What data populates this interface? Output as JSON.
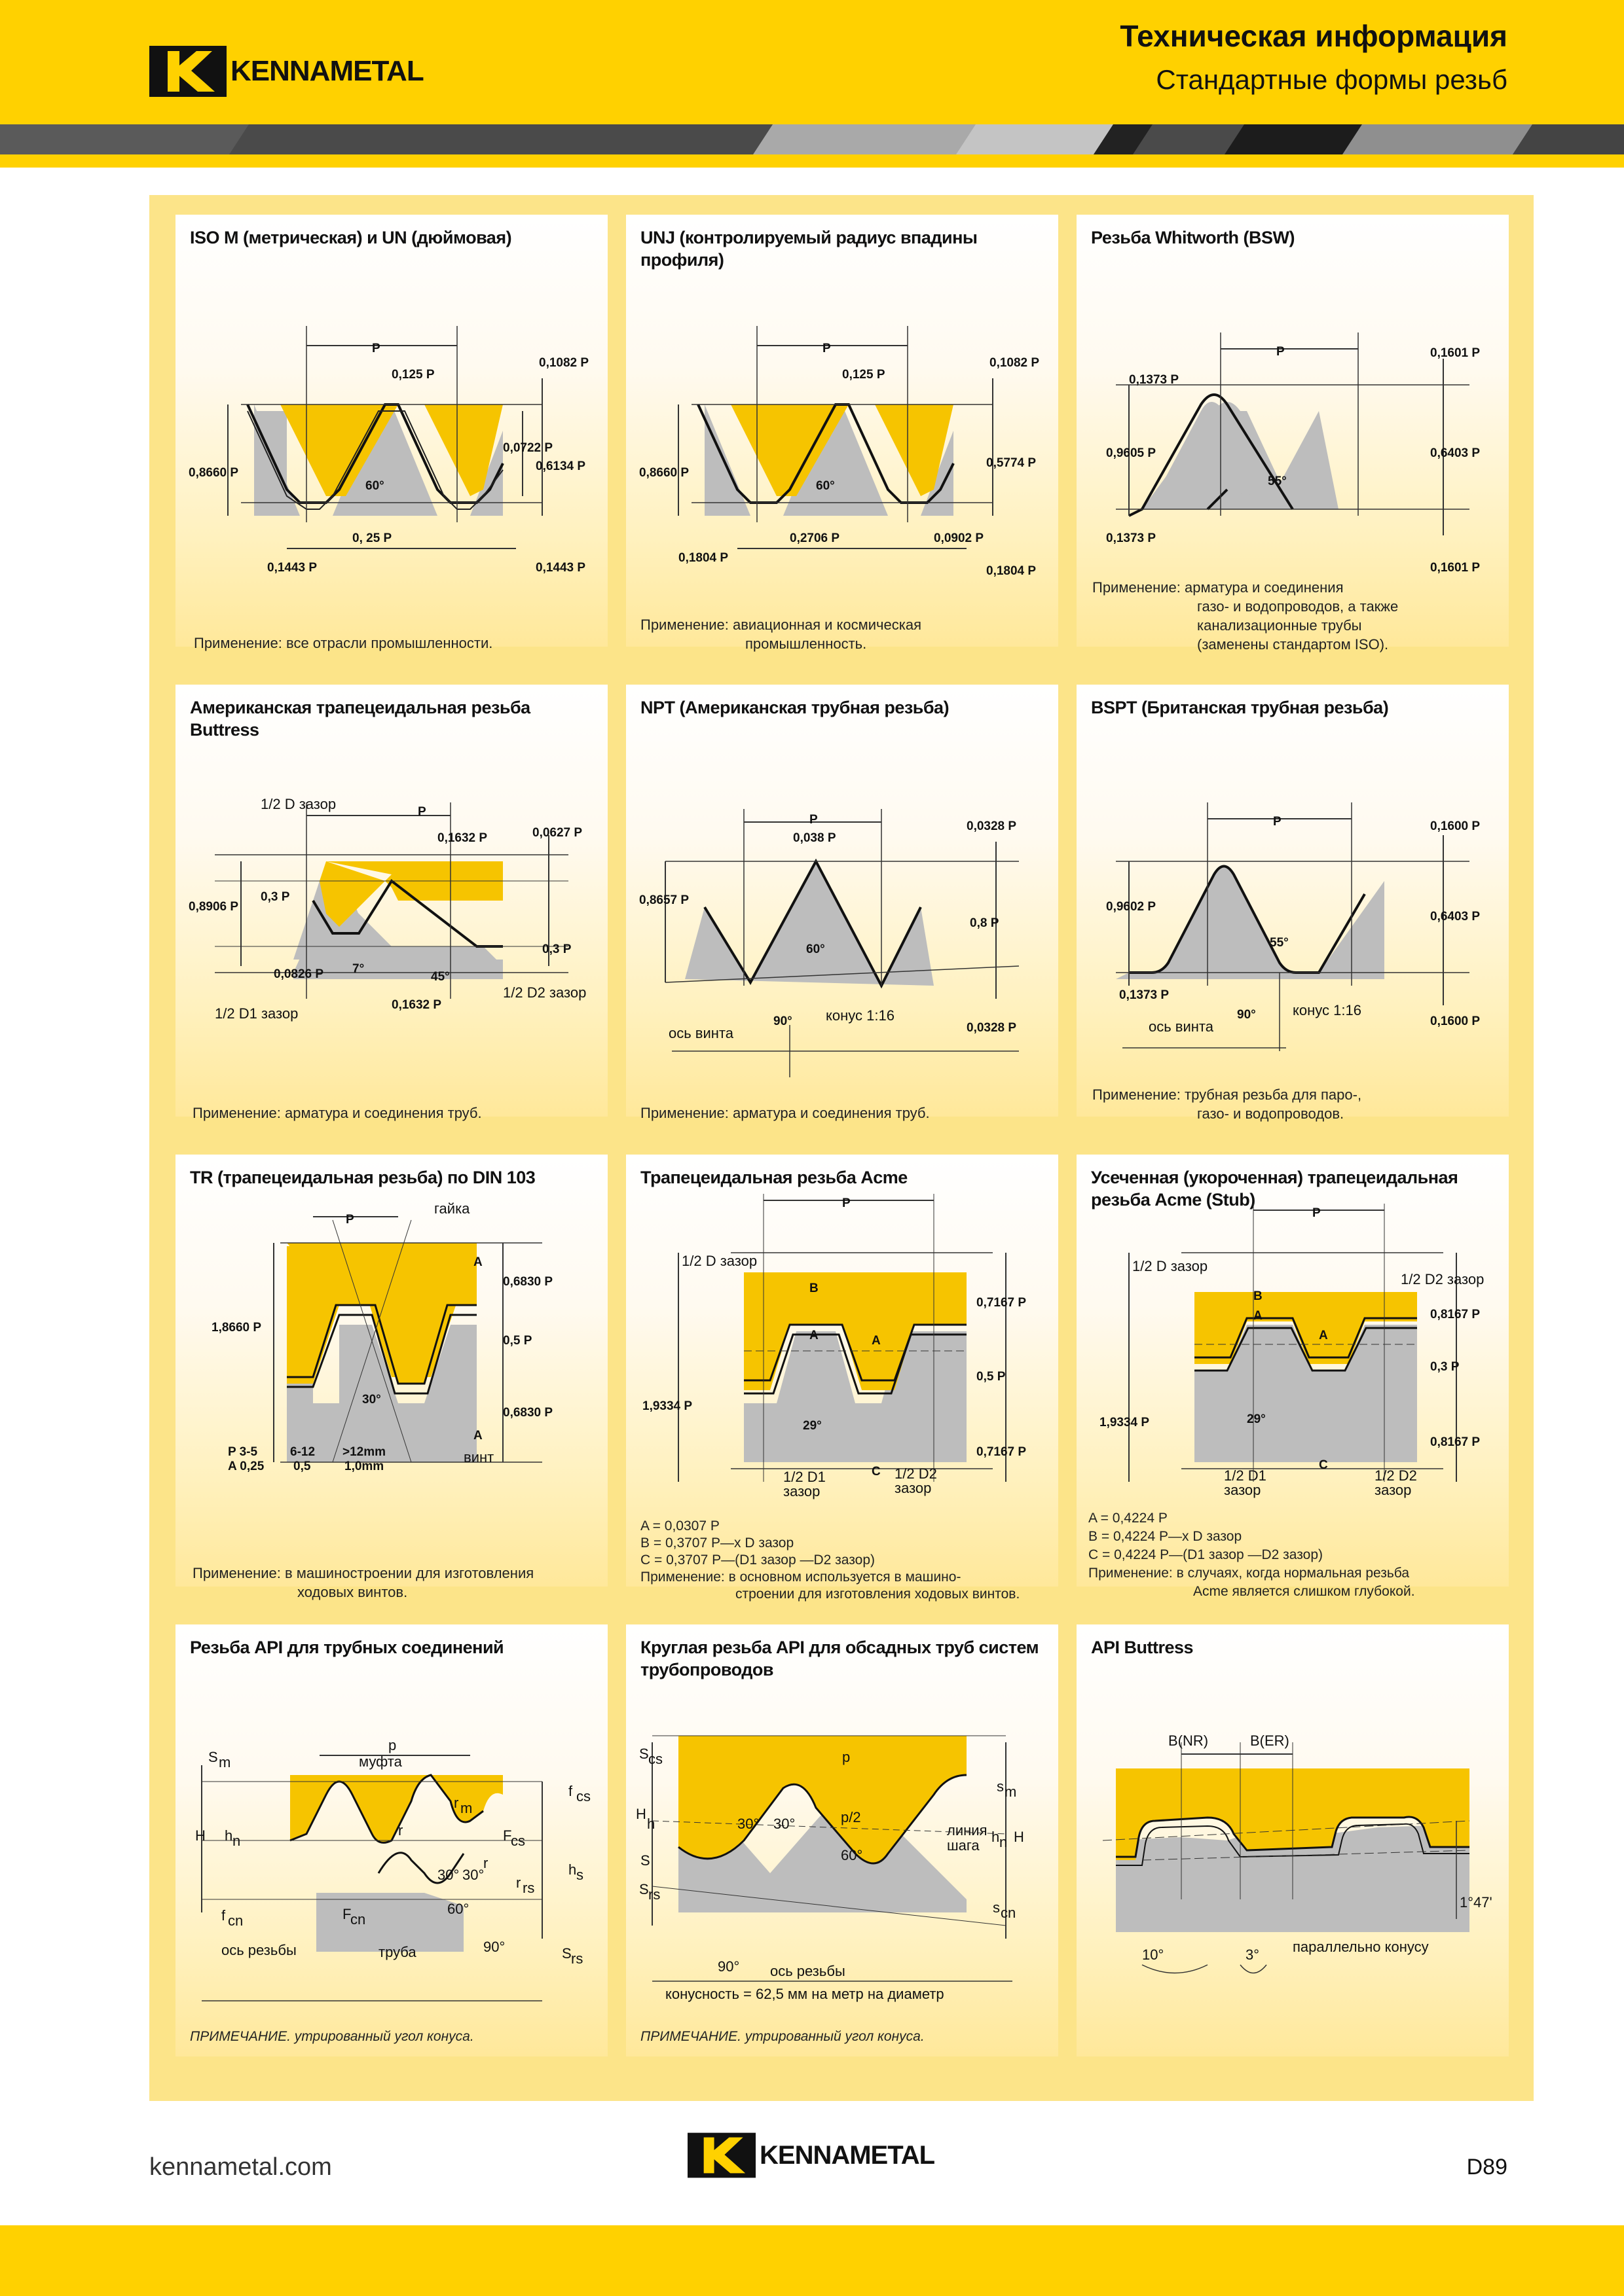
{
  "header": {
    "title": "Техническая информация",
    "subtitle": "Стандартные формы резьб",
    "brand": "KENNAMETAL"
  },
  "cards": [
    {
      "title": "ISO M (метрическая) и UN (дюймовая)",
      "labels": [
        "P",
        "0,125 P",
        "0,1082 P",
        "0,0722 P",
        "0,6134 P",
        "0,8660 P",
        "60°",
        "0, 25 P",
        "0,1443 P",
        "0,1443 P"
      ],
      "application_label": "Применение:",
      "application": [
        "все отрасли промышленности."
      ]
    },
    {
      "title": "UNJ (контролируемый радиус впадины профиля)",
      "labels": [
        "P",
        "0,125 P",
        "0,1082 P",
        "0,5774 P",
        "0,8660 P",
        "60°",
        "0,2706 P",
        "0,0902 P",
        "0,1804 P",
        "0,1804 P"
      ],
      "application_label": "Применение:",
      "application": [
        "авиационная и космическая",
        "промышленность."
      ]
    },
    {
      "title": "Резьба Whitworth (BSW)",
      "labels": [
        "P",
        "0,1601 P",
        "0,1373 P",
        "0,9605 P",
        "55°",
        "0,6403 P",
        "0,1373 P",
        "0,1601 P"
      ],
      "application_label": "Применение:",
      "application": [
        "арматура и соединения",
        "газо- и водопроводов, а также",
        "канализационные трубы",
        "(заменены стандартом ISO)."
      ]
    },
    {
      "title": "Американская трапецеидальная резьба Buttress",
      "labels": [
        "1/2 D зазор",
        "P",
        "0,1632 P",
        "0,0627 P",
        "0,3 P",
        "0,8906 P",
        "0,3 P",
        "0,0826 P",
        "7°",
        "45°",
        "1/2 D1 зазор",
        "0,1632 P",
        "1/2 D2 зазор"
      ],
      "application_label": "Применение:",
      "application": [
        "арматура и соединения труб."
      ]
    },
    {
      "title": "NPT (Американская трубная резьба)",
      "labels": [
        "P",
        "0,038 P",
        "0,0328 P",
        "0,8657 P",
        "60°",
        "0,8 P",
        "90°",
        "конус 1:16",
        "ось винта",
        "0,0328 P"
      ],
      "application_label": "Применение:",
      "application": [
        "арматура и соединения труб."
      ]
    },
    {
      "title": "BSPT (Британская трубная резьба)",
      "labels": [
        "P",
        "0,1600 P",
        "0,9602 P",
        "55°",
        "0,6403 P",
        "0,1373 P",
        "90°",
        "конус 1:16",
        "ось винта",
        "0,1600 P"
      ],
      "application_label": "Применение:",
      "application": [
        "трубная резьба для паро-,",
        "газо- и водопроводов."
      ]
    },
    {
      "title": "TR (трапецеидальная резьба) по DIN 103",
      "labels": [
        "P",
        "гайка",
        "A",
        "0,6830 P",
        "1,8660 P",
        "0,5 P",
        "30°",
        "0,6830 P",
        "A",
        "P 3-5",
        "A 0,25",
        "6-12",
        "0,5",
        ">12mm",
        "1,0mm",
        "винт"
      ],
      "application_label": "Применение:",
      "application": [
        "в машиностроении для изготовления",
        "ходовых винтов."
      ]
    },
    {
      "title": "Трапецеидальная резьба Acme",
      "labels": [
        "P",
        "1/2 D зазор",
        "B",
        "0,7167 P",
        "A",
        "A",
        "0,5 P",
        "1,9334 P",
        "29°",
        "0,7167 P",
        "C",
        "1/2 D1",
        "зазор",
        "1/2 D2",
        "зазор"
      ],
      "formulas": [
        "A = 0,0307 P",
        "B = 0,3707 P—x D зазор",
        "C = 0,3707 P—(D1 зазор —D2 зазор)"
      ],
      "application_label": "Применение:",
      "application": [
        "в основном используется в машино-",
        "строении для изготовления ходовых винтов."
      ]
    },
    {
      "title": "Усеченная (укороченная) трапецеидальная резьба Acme (Stub)",
      "labels": [
        "P",
        "1/2 D зазор",
        "1/2 D2 зазор",
        "B",
        "A",
        "0,8167 P",
        "A",
        "0,3 P",
        "1,9334 P",
        "29°",
        "0,8167 P",
        "C",
        "1/2 D1",
        "зазор",
        "1/2 D2",
        "зазор"
      ],
      "formulas": [
        "A = 0,4224 P",
        "B = 0,4224 P—x D зазор",
        "C = 0,4224 P—(D1 зазор —D2 зазор)"
      ],
      "application_label": "Применение:",
      "application": [
        "в случаях, когда нормальная резьба",
        "Acme является слишком глубокой."
      ]
    },
    {
      "title": "Резьба API для трубных соединений",
      "labels": [
        "S",
        "m",
        "p",
        "муфта",
        "f",
        "cs",
        "H",
        "h",
        "n",
        "r",
        "r",
        "m",
        "F",
        "cs",
        "h",
        "s",
        "f",
        "cn",
        "F",
        "cn",
        "30°",
        "30°",
        "r",
        "r",
        "rs",
        "60°",
        "ось резьбы",
        "труба",
        "90°",
        "S",
        "rs"
      ],
      "note": "ПРИМЕЧАНИЕ. утрированный угол конуса."
    },
    {
      "title": "Круглая резьба API для обсадных труб систем трубопроводов",
      "labels": [
        "S",
        "cs",
        "p",
        "s",
        "m",
        "H",
        "h",
        "S",
        "30°",
        "30°",
        "p/2",
        "линия",
        "шага",
        "h",
        "n",
        "H",
        "60°",
        "S",
        "rs",
        "s",
        "cn",
        "90°",
        "ось резьбы",
        "конусность = 62,5 мм на метр на диаметр"
      ],
      "note": "ПРИМЕЧАНИЕ. утрированный угол конуса."
    },
    {
      "title": "API Buttress",
      "labels": [
        "B(NR)",
        "B(ER)",
        "1°47'",
        "10°",
        "3°",
        "параллельно конусу"
      ]
    }
  ],
  "footer": {
    "url": "kennametal.com",
    "brand": "KENNAMETAL",
    "page": "D89"
  },
  "colors": {
    "yellow": "#FFD100",
    "panel": "#FCE489",
    "thread_yellow": "#F6C400",
    "thread_grey": "#BDBDBD"
  }
}
